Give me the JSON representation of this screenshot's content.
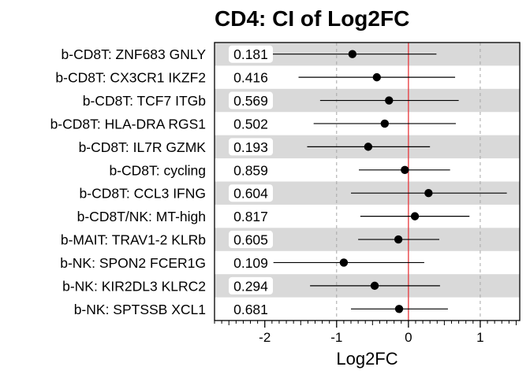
{
  "chart_data": {
    "type": "forest",
    "title": "CD4: CI of Log2FC",
    "xlabel": "Log2FC",
    "xlim": [
      -2.7,
      1.55
    ],
    "xticks": [
      -2,
      -1,
      0,
      1
    ],
    "x_scale": "linear",
    "reference_line": 0,
    "grid_dashed_at": [
      -1,
      1
    ],
    "categories": [
      "b-CD8T: ZNF683 GNLY",
      "b-CD8T: CX3CR1 IKZF2",
      "b-CD8T: TCF7 ITGb",
      "b-CD8T: HLA-DRA RGS1",
      "b-CD8T: IL7R GZMK",
      "b-CD8T: cycling",
      "b-CD8T: CCL3 IFNG",
      "b-CD8T/NK: MT-high",
      "b-MAIT: TRAV1-2 KLRb",
      "b-NK: SPON2 FCER1G",
      "b-NK: KIR2DL3 KLRC2",
      "b-NK: SPTSSB XCL1"
    ],
    "pvalues": [
      "0.181",
      "0.416",
      "0.569",
      "0.502",
      "0.193",
      "0.859",
      "0.604",
      "0.817",
      "0.605",
      "0.109",
      "0.294",
      "0.681"
    ],
    "estimate": [
      -0.78,
      -0.44,
      -0.27,
      -0.33,
      -0.56,
      -0.05,
      0.28,
      0.09,
      -0.14,
      -0.9,
      -0.47,
      -0.13
    ],
    "ci_lower": [
      -1.9,
      -1.53,
      -1.23,
      -1.32,
      -1.41,
      -0.69,
      -0.8,
      -0.67,
      -0.7,
      -1.88,
      -1.37,
      -0.8
    ],
    "ci_upper": [
      0.39,
      0.65,
      0.7,
      0.66,
      0.3,
      0.58,
      1.37,
      0.85,
      0.43,
      0.22,
      0.44,
      0.55
    ],
    "colors": {
      "band": "#d9d9d9",
      "refline": "#e8383d",
      "grid": "#a6a6a6",
      "point": "#000000"
    }
  }
}
